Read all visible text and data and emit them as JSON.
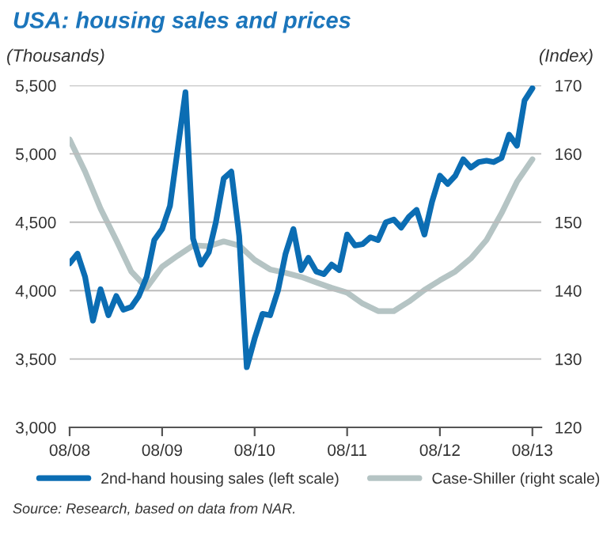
{
  "chart_data": {
    "type": "line",
    "title": "USA: housing sales and prices",
    "ylabel": "(Thousands)",
    "y2label": "(Index)",
    "annotations": [
      "Source: Research, based on data from NAR."
    ],
    "x": [
      "2008-08",
      "2008-09",
      "2008-10",
      "2008-11",
      "2008-12",
      "2009-01",
      "2009-02",
      "2009-03",
      "2009-04",
      "2009-05",
      "2009-06",
      "2009-07",
      "2009-08",
      "2009-09",
      "2009-10",
      "2009-11",
      "2009-12",
      "2010-01",
      "2010-02",
      "2010-03",
      "2010-04",
      "2010-05",
      "2010-06",
      "2010-07",
      "2010-08",
      "2010-09",
      "2010-10",
      "2010-11",
      "2010-12",
      "2011-01",
      "2011-02",
      "2011-03",
      "2011-04",
      "2011-05",
      "2011-06",
      "2011-07",
      "2011-08",
      "2011-09",
      "2011-10",
      "2011-11",
      "2011-12",
      "2012-01",
      "2012-02",
      "2012-03",
      "2012-04",
      "2012-05",
      "2012-06",
      "2012-07",
      "2012-08",
      "2012-09",
      "2012-10",
      "2012-11",
      "2012-12",
      "2013-01",
      "2013-02",
      "2013-03",
      "2013-04",
      "2013-05",
      "2013-06",
      "2013-07",
      "2013-08"
    ],
    "series": [
      {
        "name": "2nd-hand housing sales (left scale)",
        "color": "#0b6db3",
        "values": [
          4200,
          4270,
          4100,
          3780,
          4010,
          3820,
          3960,
          3860,
          3880,
          3960,
          4100,
          4370,
          4450,
          4620,
          5030,
          5450,
          4380,
          4190,
          4280,
          4500,
          4820,
          4870,
          4400,
          3440,
          3650,
          3830,
          3820,
          4000,
          4270,
          4450,
          4150,
          4240,
          4140,
          4120,
          4190,
          4150,
          4410,
          4330,
          4340,
          4390,
          4370,
          4500,
          4520,
          4460,
          4540,
          4590,
          4410,
          4650,
          4840,
          4780,
          4840,
          4960,
          4900,
          4940,
          4950,
          4940,
          4970,
          5140,
          5060,
          5390,
          5480
        ]
      },
      {
        "name": "Case-Shiller (right scale)",
        "color": "#b5c4c4",
        "axis": "y2",
        "x": [
          "2008-08",
          "2008-10",
          "2008-12",
          "2009-02",
          "2009-04",
          "2009-06",
          "2009-08",
          "2009-10",
          "2009-12",
          "2010-02",
          "2010-04",
          "2010-06",
          "2010-08",
          "2010-10",
          "2010-12",
          "2011-02",
          "2011-04",
          "2011-06",
          "2011-08",
          "2011-10",
          "2011-12",
          "2012-02",
          "2012-04",
          "2012-06",
          "2012-08",
          "2012-10",
          "2012-12",
          "2013-02",
          "2013-04",
          "2013-06",
          "2013-08"
        ],
        "values": [
          162.1,
          157.4,
          152.0,
          147.4,
          142.8,
          140.4,
          143.5,
          145.1,
          146.6,
          146.5,
          147.2,
          146.6,
          144.5,
          143.1,
          142.6,
          142.0,
          141.2,
          140.4,
          139.7,
          138.1,
          137.0,
          137.0,
          138.4,
          140.1,
          141.5,
          142.8,
          144.7,
          147.4,
          151.3,
          155.9,
          159.2
        ]
      }
    ],
    "xlim": [
      "2008-08-01",
      "2013-09-05"
    ],
    "xticks": [
      {
        "value": "2008-08",
        "label": "08/08"
      },
      {
        "value": "2009-08",
        "label": "08/09"
      },
      {
        "value": "2010-08",
        "label": "08/10"
      },
      {
        "value": "2011-08",
        "label": "08/11"
      },
      {
        "value": "2012-08",
        "label": "08/12"
      },
      {
        "value": "2013-08",
        "label": "08/13"
      }
    ],
    "ylim": [
      3000,
      5500
    ],
    "yticks": [
      {
        "value": 3000,
        "label": "3,000"
      },
      {
        "value": 3500,
        "label": "3,500"
      },
      {
        "value": 4000,
        "label": "4,000"
      },
      {
        "value": 4500,
        "label": "4,500"
      },
      {
        "value": 5000,
        "label": "5,000"
      },
      {
        "value": 5500,
        "label": "5,500"
      }
    ],
    "y2lim": [
      120,
      170
    ],
    "y2ticks": [
      120,
      130,
      140,
      150,
      160,
      170
    ],
    "grid": "y",
    "legend": "bottom",
    "marker": "none",
    "line_style": "solid"
  }
}
